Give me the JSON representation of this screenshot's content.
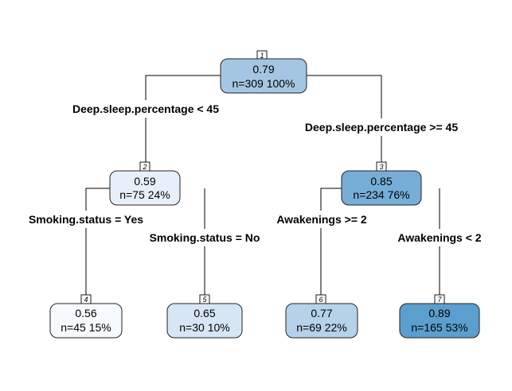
{
  "tree": {
    "nodes": [
      {
        "id": "1",
        "value": "0.79",
        "count": "n=309  100%",
        "fill": "#a4c6e2"
      },
      {
        "id": "2",
        "value": "0.59",
        "count": "n=75  24%",
        "fill": "#e7f0fa"
      },
      {
        "id": "3",
        "value": "0.85",
        "count": "n=234  76%",
        "fill": "#76aed7"
      },
      {
        "id": "4",
        "value": "0.56",
        "count": "n=45  15%",
        "fill": "#f6fafe"
      },
      {
        "id": "5",
        "value": "0.65",
        "count": "n=30  10%",
        "fill": "#d6e6f4"
      },
      {
        "id": "6",
        "value": "0.77",
        "count": "n=69  22%",
        "fill": "#b6d1ea"
      },
      {
        "id": "7",
        "value": "0.89",
        "count": "n=165  53%",
        "fill": "#5b9fcf"
      }
    ],
    "splits": {
      "root_left": "Deep.sleep.percentage < 45",
      "root_right": "Deep.sleep.percentage >= 45",
      "n2_left": "Smoking.status = Yes",
      "n2_right": "Smoking.status = No",
      "n3_left": "Awakenings >= 2",
      "n3_right": "Awakenings < 2"
    }
  }
}
